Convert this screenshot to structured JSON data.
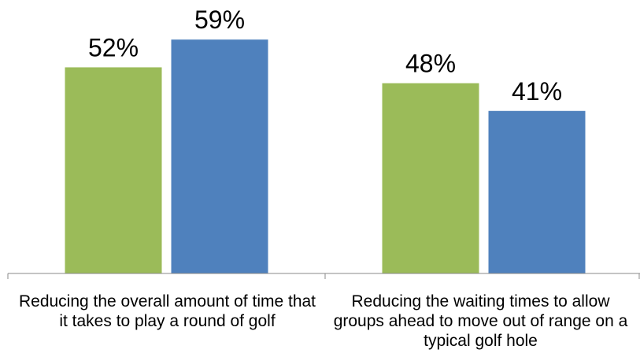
{
  "chart_data": {
    "type": "bar",
    "categories": [
      "Reducing the overall amount of time that it takes to play a round of golf",
      "Reducing the waiting times to allow groups ahead to move out of range on a typical golf hole"
    ],
    "series": [
      {
        "color": "#9bbb59",
        "values": [
          52,
          48
        ]
      },
      {
        "color": "#4f81bd",
        "values": [
          59,
          41
        ]
      }
    ],
    "data_labels": [
      [
        "52%",
        "59%"
      ],
      [
        "48%",
        "41%"
      ]
    ],
    "ylim": [
      0,
      70
    ],
    "grid": false,
    "legend": "none"
  }
}
